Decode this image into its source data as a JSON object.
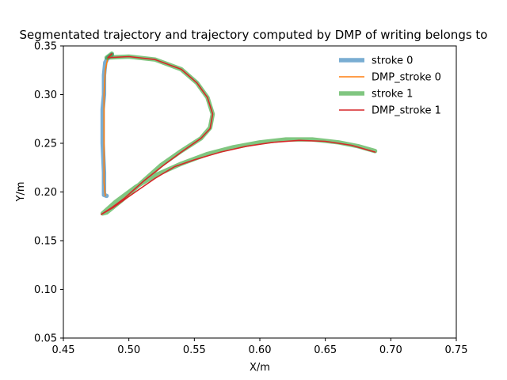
{
  "chart_data": {
    "type": "line",
    "title": "Segmentated trajectory and trajectory computed by DMP of writing belongs to",
    "xlabel": "X/m",
    "ylabel": "Y/m",
    "xlim": [
      0.45,
      0.75
    ],
    "ylim": [
      0.05,
      0.35
    ],
    "xticks": [
      "0.45",
      "0.50",
      "0.55",
      "0.60",
      "0.65",
      "0.70",
      "0.75"
    ],
    "yticks": [
      "0.05",
      "0.10",
      "0.15",
      "0.20",
      "0.25",
      "0.30",
      "0.35"
    ],
    "grid": false,
    "legend_position": "top-right",
    "series": [
      {
        "name": "stroke 0",
        "color": "#1f77b4",
        "alpha": 0.6,
        "style": "thick",
        "points": [
          [
            0.483,
            0.196
          ],
          [
            0.481,
            0.197
          ],
          [
            0.481,
            0.22
          ],
          [
            0.48,
            0.25
          ],
          [
            0.48,
            0.285
          ],
          [
            0.481,
            0.3
          ],
          [
            0.481,
            0.32
          ],
          [
            0.482,
            0.333
          ],
          [
            0.484,
            0.338
          ],
          [
            0.487,
            0.341
          ]
        ]
      },
      {
        "name": "DMP_stroke 0",
        "color": "#ff7f0e",
        "alpha": 1.0,
        "style": "thin",
        "points": [
          [
            0.482,
            0.196
          ],
          [
            0.481,
            0.21
          ],
          [
            0.481,
            0.24
          ],
          [
            0.481,
            0.27
          ],
          [
            0.481,
            0.3
          ],
          [
            0.482,
            0.325
          ],
          [
            0.484,
            0.338
          ],
          [
            0.487,
            0.341
          ]
        ]
      },
      {
        "name": "stroke 1",
        "color": "#2ca02c",
        "alpha": 0.6,
        "style": "thick",
        "points": [
          [
            0.487,
            0.342
          ],
          [
            0.483,
            0.338
          ],
          [
            0.5,
            0.339
          ],
          [
            0.52,
            0.336
          ],
          [
            0.54,
            0.326
          ],
          [
            0.552,
            0.312
          ],
          [
            0.56,
            0.297
          ],
          [
            0.564,
            0.28
          ],
          [
            0.562,
            0.266
          ],
          [
            0.555,
            0.255
          ],
          [
            0.54,
            0.242
          ],
          [
            0.525,
            0.228
          ],
          [
            0.51,
            0.21
          ],
          [
            0.495,
            0.192
          ],
          [
            0.483,
            0.179
          ],
          [
            0.48,
            0.178
          ],
          [
            0.49,
            0.19
          ],
          [
            0.505,
            0.205
          ],
          [
            0.52,
            0.217
          ],
          [
            0.54,
            0.229
          ],
          [
            0.56,
            0.239
          ],
          [
            0.58,
            0.246
          ],
          [
            0.6,
            0.251
          ],
          [
            0.62,
            0.254
          ],
          [
            0.64,
            0.254
          ],
          [
            0.66,
            0.251
          ],
          [
            0.675,
            0.247
          ],
          [
            0.688,
            0.242
          ]
        ]
      },
      {
        "name": "DMP_stroke 1",
        "color": "#d62728",
        "alpha": 1.0,
        "style": "thin",
        "points": [
          [
            0.487,
            0.342
          ],
          [
            0.484,
            0.338
          ],
          [
            0.5,
            0.339
          ],
          [
            0.52,
            0.336
          ],
          [
            0.54,
            0.326
          ],
          [
            0.552,
            0.312
          ],
          [
            0.56,
            0.297
          ],
          [
            0.564,
            0.28
          ],
          [
            0.562,
            0.265
          ],
          [
            0.555,
            0.255
          ],
          [
            0.54,
            0.241
          ],
          [
            0.527,
            0.228
          ],
          [
            0.512,
            0.212
          ],
          [
            0.497,
            0.194
          ],
          [
            0.487,
            0.184
          ],
          [
            0.479,
            0.177
          ],
          [
            0.488,
            0.184
          ],
          [
            0.505,
            0.2
          ],
          [
            0.52,
            0.214
          ],
          [
            0.535,
            0.226
          ],
          [
            0.55,
            0.233
          ],
          [
            0.57,
            0.241
          ],
          [
            0.59,
            0.247
          ],
          [
            0.61,
            0.251
          ],
          [
            0.63,
            0.253
          ],
          [
            0.65,
            0.252
          ],
          [
            0.67,
            0.248
          ],
          [
            0.688,
            0.241
          ]
        ]
      }
    ]
  }
}
